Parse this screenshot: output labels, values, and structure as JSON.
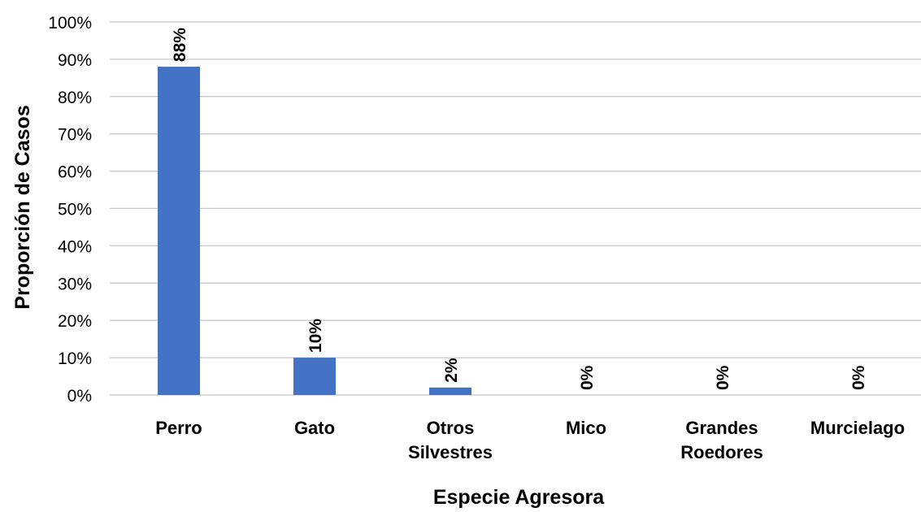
{
  "chart_data": {
    "type": "bar",
    "categories": [
      [
        "Perro"
      ],
      [
        "Gato"
      ],
      [
        "Otros",
        "Silvestres"
      ],
      [
        "Mico"
      ],
      [
        "Grandes",
        "Roedores"
      ],
      [
        "Murcielago"
      ]
    ],
    "values": [
      88,
      10,
      2,
      0,
      0,
      0
    ],
    "data_labels": [
      "88%",
      "10%",
      "2%",
      "0%",
      "0%",
      "0%"
    ],
    "ylim": [
      0,
      100
    ],
    "yticks": [
      "0%",
      "10%",
      "20%",
      "30%",
      "40%",
      "50%",
      "60%",
      "70%",
      "80%",
      "90%",
      "100%"
    ],
    "xlabel": "Especie Agresora",
    "ylabel": "Proporción de Casos",
    "grid": true,
    "bar_color": "#4472c4"
  }
}
